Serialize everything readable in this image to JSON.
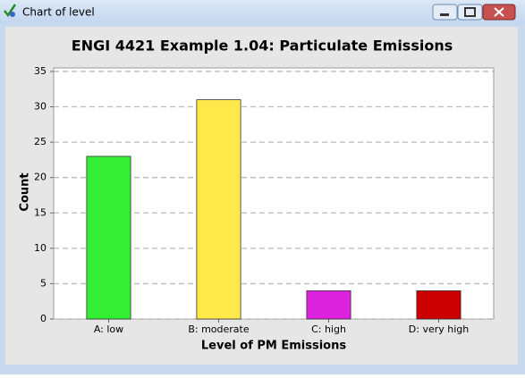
{
  "window": {
    "title": "Chart of level"
  },
  "chart_data": {
    "type": "bar",
    "title": "ENGI 4421 Example 1.04:  Particulate Emissions",
    "x_label": "Level of PM Emissions",
    "y_label": "Count",
    "categories": [
      "A: low",
      "B: moderate",
      "C: high",
      "D: very high"
    ],
    "values": [
      23,
      31,
      4,
      4
    ],
    "colors": [
      "#33ee33",
      "#ffe84a",
      "#dd22dd",
      "#cc0000"
    ],
    "ylim": [
      0,
      35.5
    ],
    "yticks": [
      0,
      5,
      10,
      15,
      20,
      25,
      30,
      35
    ],
    "grid": true
  }
}
